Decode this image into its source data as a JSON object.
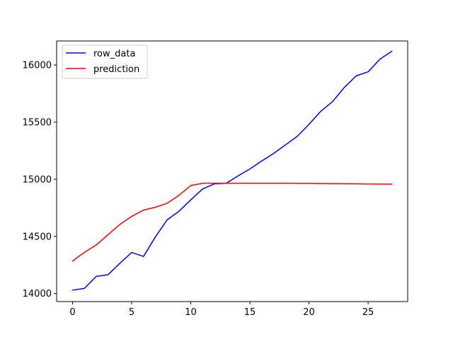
{
  "chart_data": {
    "type": "line",
    "title": "",
    "xlabel": "",
    "ylabel": "",
    "xlim": [
      -1.35,
      28.35
    ],
    "ylim": [
      13930,
      16210
    ],
    "xticks": [
      0,
      5,
      10,
      15,
      20,
      25
    ],
    "yticks": [
      14000,
      14500,
      15000,
      15500,
      16000
    ],
    "grid": false,
    "legend_position": "top-left",
    "x": [
      0,
      1,
      2,
      3,
      4,
      5,
      6,
      7,
      8,
      9,
      10,
      11,
      12,
      13,
      14,
      15,
      16,
      17,
      18,
      19,
      20,
      21,
      22,
      23,
      24,
      25,
      26,
      27
    ],
    "series": [
      {
        "name": "row_data",
        "color": "#0000ff",
        "values": [
          14030,
          14045,
          14150,
          14165,
          14265,
          14360,
          14325,
          14495,
          14645,
          14720,
          14820,
          14915,
          14960,
          14965,
          15030,
          15090,
          15160,
          15225,
          15300,
          15375,
          15480,
          15595,
          15680,
          15805,
          15905,
          15940,
          16050,
          16120
        ]
      },
      {
        "name": "prediction",
        "color": "#ff0000",
        "values": [
          14285,
          14360,
          14425,
          14515,
          14605,
          14675,
          14730,
          14755,
          14790,
          14860,
          14945,
          14965,
          14965,
          14965,
          14965,
          14965,
          14965,
          14965,
          14965,
          14964,
          14964,
          14963,
          14962,
          14961,
          14960,
          14959,
          14958,
          14957
        ]
      }
    ]
  }
}
